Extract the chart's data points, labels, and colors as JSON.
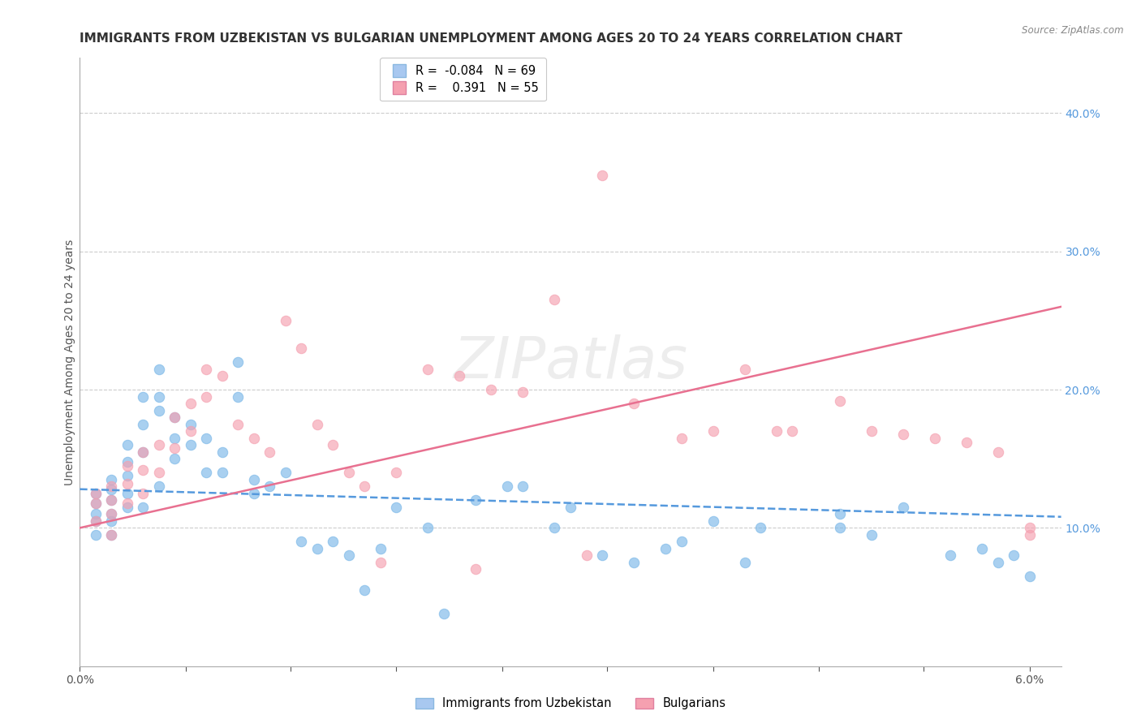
{
  "title": "IMMIGRANTS FROM UZBEKISTAN VS BULGARIAN UNEMPLOYMENT AMONG AGES 20 TO 24 YEARS CORRELATION CHART",
  "source": "Source: ZipAtlas.com",
  "ylabel": "Unemployment Among Ages 20 to 24 years",
  "legend_entries": [
    {
      "label": "Immigrants from Uzbekistan",
      "R": -0.084,
      "N": 69,
      "color": "#a8c8f0"
    },
    {
      "label": "Bulgarians",
      "R": 0.391,
      "N": 55,
      "color": "#f5a0b0"
    }
  ],
  "watermark": "ZIPatlas",
  "blue_scatter": {
    "x": [
      0.001,
      0.001,
      0.001,
      0.001,
      0.001,
      0.002,
      0.002,
      0.002,
      0.002,
      0.002,
      0.002,
      0.003,
      0.003,
      0.003,
      0.003,
      0.003,
      0.004,
      0.004,
      0.004,
      0.004,
      0.005,
      0.005,
      0.005,
      0.005,
      0.006,
      0.006,
      0.006,
      0.007,
      0.007,
      0.008,
      0.008,
      0.009,
      0.009,
      0.01,
      0.01,
      0.011,
      0.011,
      0.012,
      0.013,
      0.014,
      0.015,
      0.016,
      0.017,
      0.019,
      0.02,
      0.022,
      0.025,
      0.027,
      0.03,
      0.033,
      0.035,
      0.037,
      0.038,
      0.042,
      0.048,
      0.048,
      0.052,
      0.055,
      0.06,
      0.018,
      0.023,
      0.028,
      0.031,
      0.04,
      0.043,
      0.05,
      0.057,
      0.058,
      0.059
    ],
    "y": [
      0.125,
      0.118,
      0.11,
      0.105,
      0.095,
      0.135,
      0.128,
      0.12,
      0.11,
      0.105,
      0.095,
      0.16,
      0.148,
      0.138,
      0.125,
      0.115,
      0.195,
      0.175,
      0.155,
      0.115,
      0.215,
      0.195,
      0.185,
      0.13,
      0.18,
      0.165,
      0.15,
      0.175,
      0.16,
      0.165,
      0.14,
      0.155,
      0.14,
      0.22,
      0.195,
      0.135,
      0.125,
      0.13,
      0.14,
      0.09,
      0.085,
      0.09,
      0.08,
      0.085,
      0.115,
      0.1,
      0.12,
      0.13,
      0.1,
      0.08,
      0.075,
      0.085,
      0.09,
      0.075,
      0.11,
      0.1,
      0.115,
      0.08,
      0.065,
      0.055,
      0.038,
      0.13,
      0.115,
      0.105,
      0.1,
      0.095,
      0.085,
      0.075,
      0.08
    ],
    "color": "#7bb8e8",
    "edgecolor": "#7bb8e8"
  },
  "pink_scatter": {
    "x": [
      0.001,
      0.001,
      0.001,
      0.002,
      0.002,
      0.002,
      0.002,
      0.003,
      0.003,
      0.003,
      0.004,
      0.004,
      0.004,
      0.005,
      0.005,
      0.006,
      0.006,
      0.007,
      0.007,
      0.008,
      0.008,
      0.009,
      0.01,
      0.011,
      0.012,
      0.013,
      0.014,
      0.015,
      0.016,
      0.017,
      0.018,
      0.02,
      0.022,
      0.024,
      0.026,
      0.028,
      0.03,
      0.033,
      0.035,
      0.038,
      0.04,
      0.042,
      0.045,
      0.048,
      0.05,
      0.052,
      0.054,
      0.056,
      0.058,
      0.06,
      0.025,
      0.032,
      0.044,
      0.019,
      0.06
    ],
    "y": [
      0.125,
      0.118,
      0.105,
      0.13,
      0.12,
      0.11,
      0.095,
      0.145,
      0.132,
      0.118,
      0.155,
      0.142,
      0.125,
      0.16,
      0.14,
      0.18,
      0.158,
      0.19,
      0.17,
      0.215,
      0.195,
      0.21,
      0.175,
      0.165,
      0.155,
      0.25,
      0.23,
      0.175,
      0.16,
      0.14,
      0.13,
      0.14,
      0.215,
      0.21,
      0.2,
      0.198,
      0.265,
      0.355,
      0.19,
      0.165,
      0.17,
      0.215,
      0.17,
      0.192,
      0.17,
      0.168,
      0.165,
      0.162,
      0.155,
      0.1,
      0.07,
      0.08,
      0.17,
      0.075,
      0.095
    ],
    "color": "#f5a0b0",
    "edgecolor": "#f5a0b0"
  },
  "blue_line": {
    "x0": 0.0,
    "x1": 0.062,
    "y0": 0.128,
    "y1": 0.108,
    "color": "#5599dd",
    "style": "--"
  },
  "pink_line": {
    "x0": 0.0,
    "x1": 0.062,
    "y0": 0.1,
    "y1": 0.26,
    "color": "#e87090",
    "style": "-"
  },
  "xlim": [
    0.0,
    0.062
  ],
  "ylim": [
    0.0,
    0.44
  ],
  "yticks_left": [],
  "right_yticks": [
    0.1,
    0.2,
    0.3,
    0.4
  ],
  "xticks": [
    0.0,
    0.00667,
    0.01333,
    0.02,
    0.02667,
    0.03333,
    0.04,
    0.04667,
    0.05333,
    0.06
  ],
  "grid_yticks": [
    0.1,
    0.2,
    0.3,
    0.4
  ],
  "grid_color": "#cccccc",
  "background_color": "#ffffff",
  "title_fontsize": 11,
  "axis_label_fontsize": 10,
  "tick_fontsize": 10,
  "scatter_size": 80,
  "scatter_alpha": 0.65
}
